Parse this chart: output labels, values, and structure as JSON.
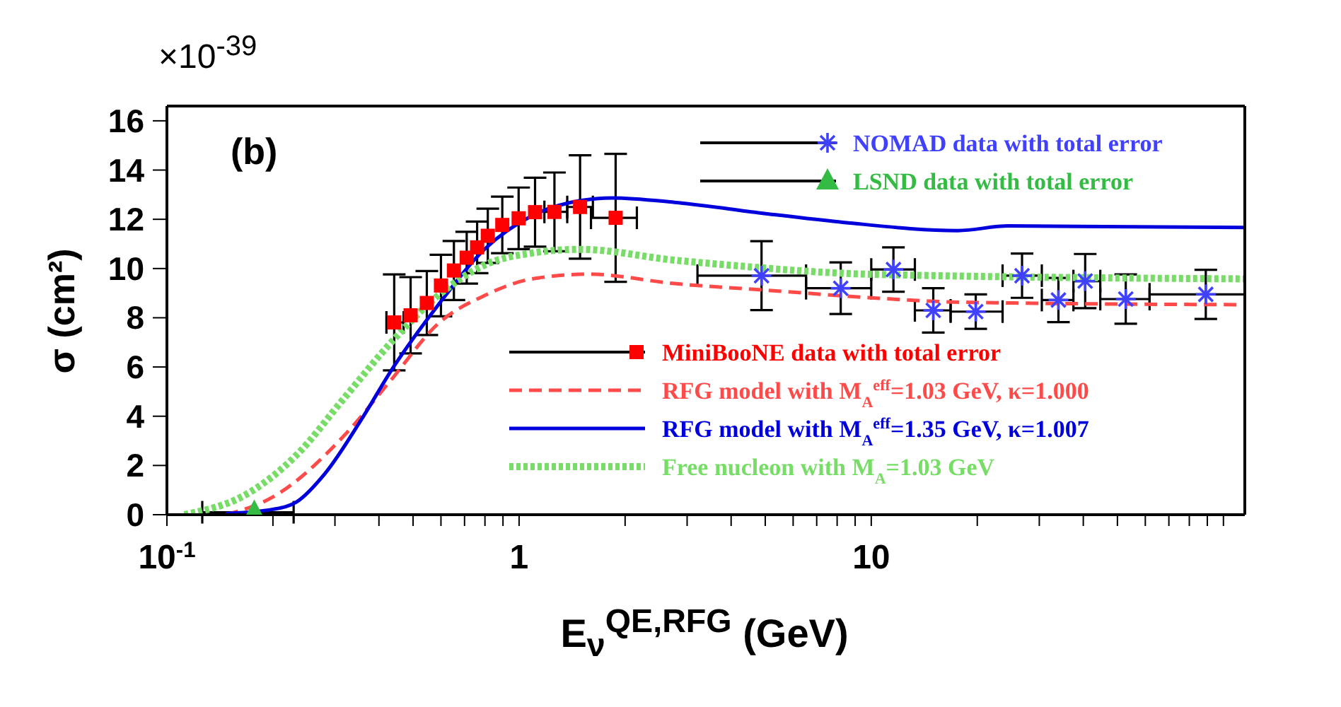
{
  "chart_data": {
    "type": "scatter",
    "xlabel": "E$_{ν}$$^{QE,RFG}$ (GeV)",
    "ylabel": "σ (cm²)",
    "annotations": [
      "×10$^{-39}$",
      "(b)"
    ],
    "log": "x",
    "grid": false,
    "legend": "right",
    "xlim": [
      0.1,
      115
    ],
    "ylim": [
      0,
      16.6
    ],
    "xticks": [
      {
        "value": 0.1,
        "label": "10$^{-1}$"
      },
      {
        "value": 0.2,
        "label": null
      },
      {
        "value": 0.3,
        "label": null
      },
      {
        "value": 0.4,
        "label": null
      },
      {
        "value": 0.5,
        "label": null
      },
      {
        "value": 0.6,
        "label": null
      },
      {
        "value": 0.7,
        "label": null
      },
      {
        "value": 0.8,
        "label": null
      },
      {
        "value": 0.9,
        "label": null
      },
      1,
      {
        "value": 2,
        "label": null
      },
      {
        "value": 3,
        "label": null
      },
      {
        "value": 4,
        "label": null
      },
      {
        "value": 5,
        "label": null
      },
      {
        "value": 6,
        "label": null
      },
      {
        "value": 7,
        "label": null
      },
      {
        "value": 8,
        "label": null
      },
      {
        "value": 9,
        "label": null
      },
      10,
      {
        "value": 20,
        "label": null
      },
      {
        "value": 30,
        "label": null
      },
      {
        "value": 40,
        "label": null
      },
      {
        "value": 50,
        "label": null
      },
      {
        "value": 60,
        "label": null
      },
      {
        "value": 70,
        "label": null
      },
      {
        "value": 80,
        "label": null
      },
      {
        "value": 90,
        "label": null
      },
      {
        "value": 100,
        "label": null
      }
    ],
    "yticks": [
      0,
      2,
      4,
      6,
      8,
      10,
      12,
      14,
      16
    ],
    "series": [
      {
        "name": "NOMAD data with total error",
        "marker": "cross",
        "color": "#4040ff",
        "x": [
          4.88,
          8.19,
          11.56,
          15.0,
          19.8,
          26.8,
          34,
          40.5,
          52.8,
          89.1
        ],
        "values": [
          9.71,
          9.2,
          9.96,
          8.3,
          8.25,
          9.71,
          8.72,
          9.49,
          8.76,
          8.95
        ],
        "errors": [
          1.4,
          1.05,
          0.9,
          0.9,
          0.7,
          0.9,
          0.9,
          1.1,
          1.0,
          1.0
        ],
        "xerrors": [
          [
            3.21,
            6.53
          ],
          [
            6.53,
            10.0
          ],
          [
            10.0,
            13.3
          ],
          [
            13.3,
            16.8
          ],
          [
            16.8,
            23.6
          ],
          [
            23.6,
            30.5
          ],
          [
            30.5,
            37.5
          ],
          [
            37.5,
            44.7
          ],
          [
            44.7,
            61.7
          ],
          [
            61.7,
            115
          ]
        ]
      },
      {
        "name": "LSND data with total error",
        "marker": "triangle",
        "color": "#33bb44",
        "x": [
          0.177
        ],
        "values": [
          0.1
        ],
        "xerrors": [
          [
            0.126,
            0.229
          ]
        ]
      },
      {
        "name": "MiniBooNE data with total error",
        "marker": "square",
        "color": "#ff0000",
        "x": [
          0.442,
          0.492,
          0.547,
          0.6,
          0.653,
          0.71,
          0.76,
          0.815,
          0.896,
          0.997,
          1.11,
          1.26,
          1.49,
          1.88
        ],
        "values": [
          7.81,
          8.1,
          8.6,
          9.31,
          9.92,
          10.44,
          10.86,
          11.33,
          11.77,
          12.04,
          12.29,
          12.3,
          12.5,
          12.06
        ],
        "errors": [
          1.95,
          1.55,
          1.3,
          1.25,
          1.2,
          1.05,
          1.05,
          1.1,
          1.15,
          1.25,
          1.4,
          1.6,
          2.1,
          2.6
        ],
        "xerrors": [
          [
            0.42,
            0.47
          ],
          null,
          null,
          null,
          null,
          null,
          null,
          null,
          null,
          null,
          null,
          [
            1.18,
            1.37
          ],
          [
            1.37,
            1.62
          ],
          [
            1.6,
            2.16
          ]
        ]
      },
      {
        "name": "RFG model with M$_{A}$$^{eff}$=1.03 GeV, κ=1.000",
        "type": "line",
        "line_style": "dashed",
        "marker": "none",
        "color": "#ff4a4a",
        "x": [
          0.147,
          0.2,
          0.318,
          0.434,
          0.59,
          0.8,
          1.09,
          1.58,
          2.76,
          5.28,
          9.8,
          18.2,
          115
        ],
        "values": [
          0,
          0.72,
          3.2,
          5.49,
          7.77,
          8.91,
          9.58,
          9.77,
          9.39,
          9.1,
          8.82,
          8.63,
          8.53
        ]
      },
      {
        "name": "RFG model with M$_{A}$$^{eff}$=1.35 GeV, κ=1.007",
        "type": "line",
        "line_style": "solid",
        "marker": "none",
        "color": "#0000dd",
        "x": [
          0.147,
          0.2,
          0.234,
          0.281,
          0.36,
          0.434,
          0.59,
          0.8,
          1.09,
          1.49,
          1.84,
          2.76,
          4.88,
          8.4,
          17.6,
          24.5,
          115
        ],
        "values": [
          0.05,
          0.22,
          0.53,
          1.67,
          3.96,
          5.87,
          8.53,
          10.8,
          12.15,
          12.76,
          12.87,
          12.69,
          12.25,
          11.87,
          11.54,
          11.73,
          11.67
        ]
      },
      {
        "name": "Free nucleon with M$_{A}$=1.03 GeV",
        "type": "line",
        "line_style": "dotted",
        "marker": "none",
        "color": "#77dd66",
        "x": [
          0.112,
          0.172,
          0.234,
          0.318,
          0.434,
          0.59,
          0.8,
          1.09,
          1.49,
          2.76,
          3.87,
          9.8,
          115
        ],
        "values": [
          0,
          0.91,
          2.44,
          4.72,
          7.01,
          8.91,
          10.15,
          10.63,
          10.78,
          10.34,
          10.15,
          9.77,
          9.58
        ]
      }
    ]
  }
}
